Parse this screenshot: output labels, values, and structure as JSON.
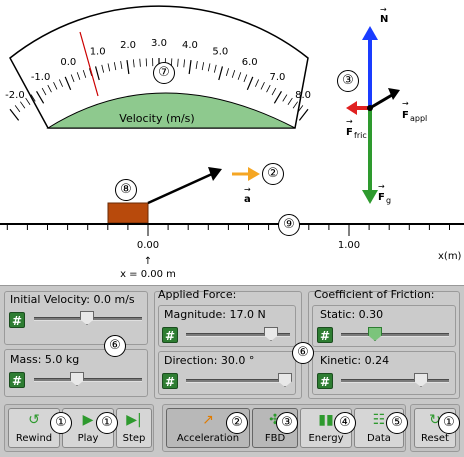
{
  "simulation": {
    "velocity_label": "Velocity (m/s)",
    "scale_ticks": [
      "-2.0",
      "-1.0",
      "0.0",
      "1.0",
      "2.0",
      "3.0",
      "4.0",
      "5.0",
      "6.0",
      "7.0",
      "8.0"
    ],
    "ruler_ticks": [
      "0.00",
      "1.00"
    ],
    "position_readout": "x = 0.00 m",
    "axis_label": "x(m)",
    "fbd_labels": {
      "normal": "N",
      "applied": "F",
      "applied_sub": "appl",
      "friction": "F",
      "friction_sub": "fric",
      "gravity": "F",
      "gravity_sub": "g"
    },
    "acceleration_label": "a"
  },
  "controls": {
    "initial_velocity": "Initial Velocity: 0.0 m/s",
    "mass": "Mass: 5.0 kg",
    "applied_force_title": "Applied Force:",
    "magnitude": "Magnitude: 17.0 N",
    "direction": "Direction: 30.0 °",
    "friction_title": "Coefficient of Friction:",
    "static": "Static: 0.30",
    "kinetic": "Kinetic: 0.24",
    "hash_symbol": "#"
  },
  "buttons": {
    "rewind": "Rewind",
    "play": "Play",
    "step": "Step",
    "acceleration": "Acceleration",
    "fbd": "FBD",
    "energy": "Energy",
    "data": "Data",
    "reset": "Reset"
  },
  "callouts": [
    "①",
    "②",
    "③",
    "④",
    "⑤",
    "⑥",
    "⑦",
    "⑧",
    "⑨"
  ],
  "colors": {
    "green": "#2e7d32",
    "block": "#b84a0c",
    "normal": "#1a3cff",
    "friction": "#e02020",
    "accel": "#f5a623"
  }
}
